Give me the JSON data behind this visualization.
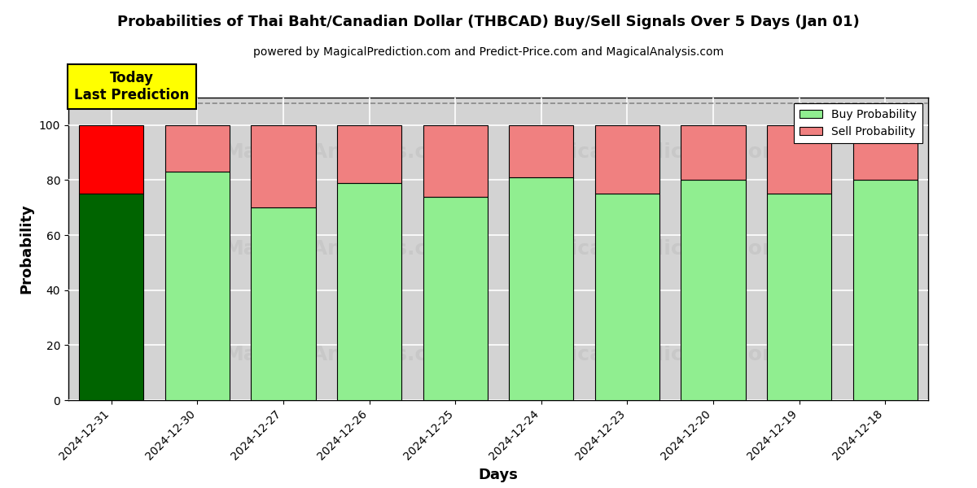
{
  "title": "Probabilities of Thai Baht/Canadian Dollar (THBCAD) Buy/Sell Signals Over 5 Days (Jan 01)",
  "subtitle": "powered by MagicalPrediction.com and Predict-Price.com and MagicalAnalysis.com",
  "xlabel": "Days",
  "ylabel": "Probability",
  "dates": [
    "2024-12-31",
    "2024-12-30",
    "2024-12-27",
    "2024-12-26",
    "2024-12-25",
    "2024-12-24",
    "2024-12-23",
    "2024-12-20",
    "2024-12-19",
    "2024-12-18"
  ],
  "buy_values": [
    75,
    83,
    70,
    79,
    74,
    81,
    75,
    80,
    75,
    80
  ],
  "sell_values": [
    25,
    17,
    30,
    21,
    26,
    19,
    25,
    20,
    25,
    20
  ],
  "first_bar_buy_color": "#006400",
  "first_bar_sell_color": "#FF0000",
  "other_bar_buy_color": "#90EE90",
  "other_bar_sell_color": "#F08080",
  "bar_edge_color": "#000000",
  "ylim_max": 110,
  "yticks": [
    0,
    20,
    40,
    60,
    80,
    100
  ],
  "dashed_line_y": 108,
  "legend_buy_color": "#90EE90",
  "legend_sell_color": "#F08080",
  "today_box_color": "#FFFF00",
  "today_label": "Today\nLast Prediction",
  "grid_color": "#FFFFFF",
  "bg_color": "#D3D3D3",
  "bar_width": 0.75,
  "legend_buy_label": "Buy Probability",
  "legend_sell_label": "Sell Probability"
}
